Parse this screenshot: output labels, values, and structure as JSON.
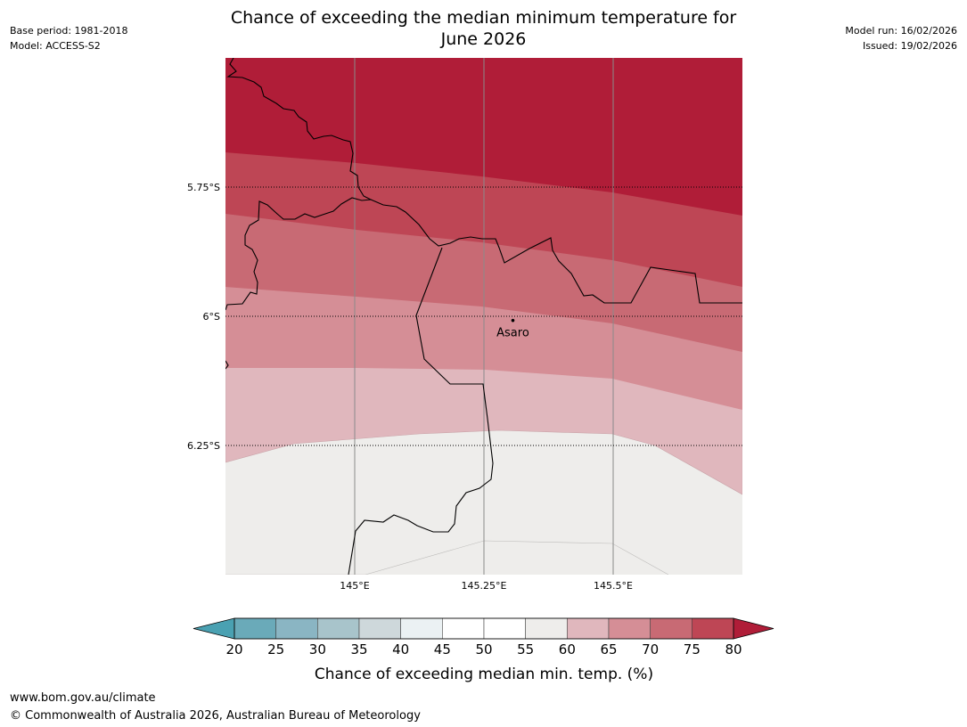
{
  "header": {
    "title_line1": "Chance of exceeding the median minimum temperature for",
    "title_line2": "June 2026",
    "base_period": "Base period: 1981-2018",
    "model": "Model: ACCESS-S2",
    "model_run": "Model run: 16/02/2026",
    "issued": "Issued: 19/02/2026"
  },
  "footer": {
    "website": "www.bom.gov.au/climate",
    "copyright": "© Commonwealth of Australia 2026, Australian Bureau of Meteorology"
  },
  "chart_data": {
    "type": "filled-contour-map",
    "title": "Chance of exceeding the median minimum temperature for June 2026",
    "x_axis": {
      "ticks": [
        145.0,
        145.25,
        145.5
      ],
      "tick_labels": [
        "145°E",
        "145.25°E",
        "145.5°E"
      ],
      "lim": [
        144.75,
        145.75
      ]
    },
    "y_axis": {
      "ticks": [
        -5.75,
        -6.0,
        -6.25
      ],
      "tick_labels": [
        "5.75°S",
        "6°S",
        "6.25°S"
      ],
      "lim": [
        -6.5,
        -5.5
      ]
    },
    "grid": true,
    "place": {
      "name": "Asaro",
      "lon": 145.306,
      "lat": -6.008
    },
    "contour_bands": [
      {
        "range": "55-60",
        "color": "#eeedeb"
      },
      {
        "range": "60-65",
        "color": "#e0b7bd"
      },
      {
        "range": "65-70",
        "color": "#d58e96"
      },
      {
        "range": "70-75",
        "color": "#c86a74"
      },
      {
        "range": "75-80",
        "color": "#be4655"
      },
      {
        "range": ">80",
        "color": "#b01d38"
      }
    ],
    "colorbar": {
      "label": "Chance of exceeding median min. temp. (%)",
      "tick_labels": [
        "20",
        "25",
        "30",
        "35",
        "40",
        "45",
        "50",
        "55",
        "60",
        "65",
        "70",
        "75",
        "80"
      ],
      "under_color": "#4aa1b2",
      "over_color": "#b01d38",
      "colors": [
        "#6aaab9",
        "#8ab5c3",
        "#a8c4cb",
        "#ced8db",
        "#ebf1f3",
        "#ffffff",
        "#ffffff",
        "#eeedeb",
        "#e0b7bd",
        "#d58e96",
        "#c86a74",
        "#be4655"
      ]
    }
  }
}
